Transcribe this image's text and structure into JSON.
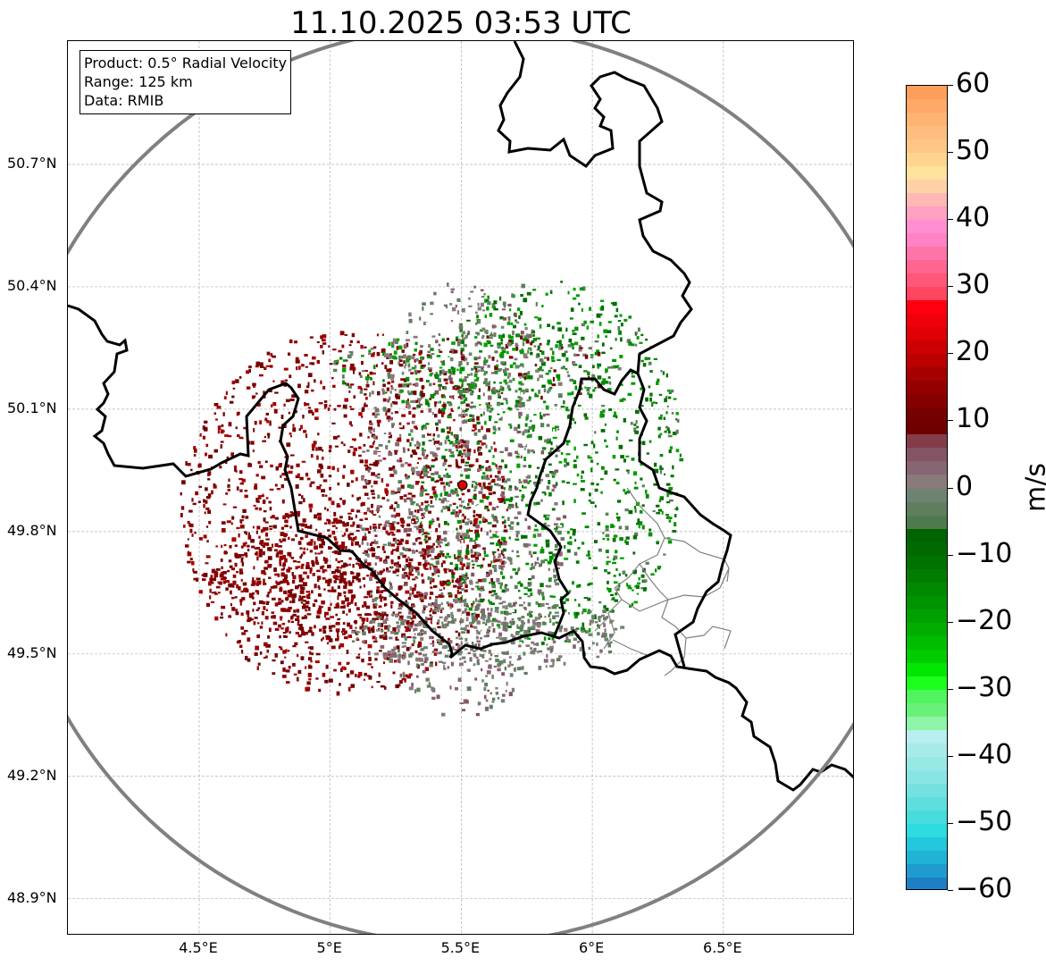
{
  "title": "11.10.2025 03:53 UTC",
  "info": {
    "product": "Product: 0.5° Radial Velocity",
    "range": "Range: 125 km",
    "data": "Data: RMIB"
  },
  "axes": {
    "lat_ticks": [
      {
        "label": "50.7°N",
        "value": 50.7
      },
      {
        "label": "50.4°N",
        "value": 50.4
      },
      {
        "label": "50.1°N",
        "value": 50.1
      },
      {
        "label": "49.8°N",
        "value": 49.8
      },
      {
        "label": "49.5°N",
        "value": 49.5
      },
      {
        "label": "49.2°N",
        "value": 49.2
      },
      {
        "label": "48.9°N",
        "value": 48.9
      }
    ],
    "lon_ticks": [
      {
        "label": "4.5°E",
        "value": 4.5
      },
      {
        "label": "5°E",
        "value": 5.0
      },
      {
        "label": "5.5°E",
        "value": 5.5
      },
      {
        "label": "6°E",
        "value": 6.0
      },
      {
        "label": "6.5°E",
        "value": 6.5
      }
    ],
    "lon_range": [
      4.0,
      7.0
    ],
    "lat_range": [
      48.8,
      51.0
    ]
  },
  "radar": {
    "lon": 5.505,
    "lat": 49.914,
    "range_km": 125,
    "marker_color": "#e00000"
  },
  "colorbar": {
    "label": "m/s",
    "vmin": -60,
    "vmax": 60,
    "ticks": [
      {
        "label": "60",
        "value": 60
      },
      {
        "label": "50",
        "value": 50
      },
      {
        "label": "40",
        "value": 40
      },
      {
        "label": "30",
        "value": 30
      },
      {
        "label": "20",
        "value": 20
      },
      {
        "label": "10",
        "value": 10
      },
      {
        "label": "0",
        "value": 0
      },
      {
        "label": "−10",
        "value": -10
      },
      {
        "label": "−20",
        "value": -20
      },
      {
        "label": "−30",
        "value": -30
      },
      {
        "label": "−40",
        "value": -40
      },
      {
        "label": "−50",
        "value": -50
      },
      {
        "label": "−60",
        "value": -60
      }
    ],
    "segments": [
      {
        "from": 58,
        "to": 60,
        "color": "#ff9e5a"
      },
      {
        "from": 56,
        "to": 58,
        "color": "#ffa867"
      },
      {
        "from": 54,
        "to": 56,
        "color": "#ffb473"
      },
      {
        "from": 52,
        "to": 54,
        "color": "#ffbd7f"
      },
      {
        "from": 50,
        "to": 52,
        "color": "#ffc687"
      },
      {
        "from": 48,
        "to": 50,
        "color": "#ffd48f"
      },
      {
        "from": 46,
        "to": 48,
        "color": "#ffe39d"
      },
      {
        "from": 44,
        "to": 46,
        "color": "#ffd1a6"
      },
      {
        "from": 42,
        "to": 44,
        "color": "#ffb8b4"
      },
      {
        "from": 40,
        "to": 42,
        "color": "#ffa1c0"
      },
      {
        "from": 38,
        "to": 40,
        "color": "#ff8fd1"
      },
      {
        "from": 36,
        "to": 38,
        "color": "#ff82c4"
      },
      {
        "from": 34,
        "to": 36,
        "color": "#ff74a8"
      },
      {
        "from": 32,
        "to": 34,
        "color": "#ff6590"
      },
      {
        "from": 30,
        "to": 32,
        "color": "#ff5778"
      },
      {
        "from": 28,
        "to": 30,
        "color": "#ff4560"
      },
      {
        "from": 26,
        "to": 28,
        "color": "#ff0010"
      },
      {
        "from": 24,
        "to": 26,
        "color": "#f00008"
      },
      {
        "from": 22,
        "to": 24,
        "color": "#e00005"
      },
      {
        "from": 20,
        "to": 22,
        "color": "#cc0003"
      },
      {
        "from": 18,
        "to": 20,
        "color": "#bb0000"
      },
      {
        "from": 16,
        "to": 18,
        "color": "#a60000"
      },
      {
        "from": 14,
        "to": 16,
        "color": "#940000"
      },
      {
        "from": 12,
        "to": 14,
        "color": "#860000"
      },
      {
        "from": 10,
        "to": 12,
        "color": "#760000"
      },
      {
        "from": 8,
        "to": 10,
        "color": "#6e0000"
      },
      {
        "from": 6,
        "to": 8,
        "color": "#843c48"
      },
      {
        "from": 4,
        "to": 6,
        "color": "#855464"
      },
      {
        "from": 2,
        "to": 4,
        "color": "#866575"
      },
      {
        "from": 0,
        "to": 2,
        "color": "#8a7a7a"
      },
      {
        "from": -2,
        "to": 0,
        "color": "#6f8373"
      },
      {
        "from": -4,
        "to": -2,
        "color": "#5e7e5e"
      },
      {
        "from": -6,
        "to": -4,
        "color": "#4f7a4f"
      },
      {
        "from": -8,
        "to": -6,
        "color": "#006400"
      },
      {
        "from": -10,
        "to": -8,
        "color": "#006a00"
      },
      {
        "from": -12,
        "to": -10,
        "color": "#007200"
      },
      {
        "from": -14,
        "to": -12,
        "color": "#007d00"
      },
      {
        "from": -16,
        "to": -14,
        "color": "#008900"
      },
      {
        "from": -18,
        "to": -16,
        "color": "#009400"
      },
      {
        "from": -20,
        "to": -18,
        "color": "#00a000"
      },
      {
        "from": -22,
        "to": -20,
        "color": "#00ad00"
      },
      {
        "from": -24,
        "to": -22,
        "color": "#00bd00"
      },
      {
        "from": -26,
        "to": -24,
        "color": "#00cc00"
      },
      {
        "from": -28,
        "to": -26,
        "color": "#00e600"
      },
      {
        "from": -30,
        "to": -28,
        "color": "#1cff1c"
      },
      {
        "from": -32,
        "to": -30,
        "color": "#4ff45f"
      },
      {
        "from": -34,
        "to": -32,
        "color": "#68f078"
      },
      {
        "from": -36,
        "to": -34,
        "color": "#8ef4a8"
      },
      {
        "from": -38,
        "to": -36,
        "color": "#b7eeef"
      },
      {
        "from": -40,
        "to": -38,
        "color": "#a6ebe9"
      },
      {
        "from": -42,
        "to": -40,
        "color": "#98e8e6"
      },
      {
        "from": -44,
        "to": -42,
        "color": "#89e5e3"
      },
      {
        "from": -46,
        "to": -44,
        "color": "#74e1e0"
      },
      {
        "from": -48,
        "to": -46,
        "color": "#5fdede"
      },
      {
        "from": -50,
        "to": -48,
        "color": "#47dcdc"
      },
      {
        "from": -52,
        "to": -50,
        "color": "#2edbe0"
      },
      {
        "from": -54,
        "to": -52,
        "color": "#24c7dc"
      },
      {
        "from": -56,
        "to": -54,
        "color": "#20b3d6"
      },
      {
        "from": -58,
        "to": -56,
        "color": "#1f9ccf"
      },
      {
        "from": -60,
        "to": -58,
        "color": "#1f7fc6"
      }
    ]
  },
  "colors": {
    "range_ring": "#808080",
    "border": "#000000",
    "admin_border": "#808080",
    "grid": "#b0b0b0"
  },
  "echo_regions": [
    {
      "name": "receding-west",
      "lon": 5.05,
      "lat": 49.85,
      "rx_km": 45,
      "ry_km": 50,
      "colors": [
        "#760000",
        "#860000",
        "#940000",
        "#6e0000",
        "#a60000"
      ],
      "count": 1400
    },
    {
      "name": "receding-southwest",
      "lon": 5.02,
      "lat": 49.7,
      "rx_km": 35,
      "ry_km": 18,
      "colors": [
        "#760000",
        "#860000",
        "#940000"
      ],
      "count": 600
    },
    {
      "name": "approaching-east",
      "lon": 5.82,
      "lat": 49.97,
      "rx_km": 38,
      "ry_km": 50,
      "colors": [
        "#007200",
        "#008900",
        "#009400",
        "#00a000",
        "#006a00",
        "#5e7e5e"
      ],
      "count": 1100
    },
    {
      "name": "near-zero-center",
      "lon": 5.5,
      "lat": 49.88,
      "rx_km": 28,
      "ry_km": 60,
      "colors": [
        "#8a7a7a",
        "#866575",
        "#855464",
        "#6f8373",
        "#5e7e5e",
        "#ffffff"
      ],
      "count": 1000
    },
    {
      "name": "near-zero-south",
      "lon": 5.6,
      "lat": 49.55,
      "rx_km": 38,
      "ry_km": 10,
      "colors": [
        "#8a7a7a",
        "#6f8373",
        "#5e7e5e",
        "#866575"
      ],
      "count": 350
    },
    {
      "name": "mixed-north",
      "lon": 5.55,
      "lat": 50.2,
      "rx_km": 40,
      "ry_km": 10,
      "colors": [
        "#5e7e5e",
        "#008900",
        "#760000",
        "#8a7a7a",
        "#00a000"
      ],
      "count": 300
    }
  ]
}
